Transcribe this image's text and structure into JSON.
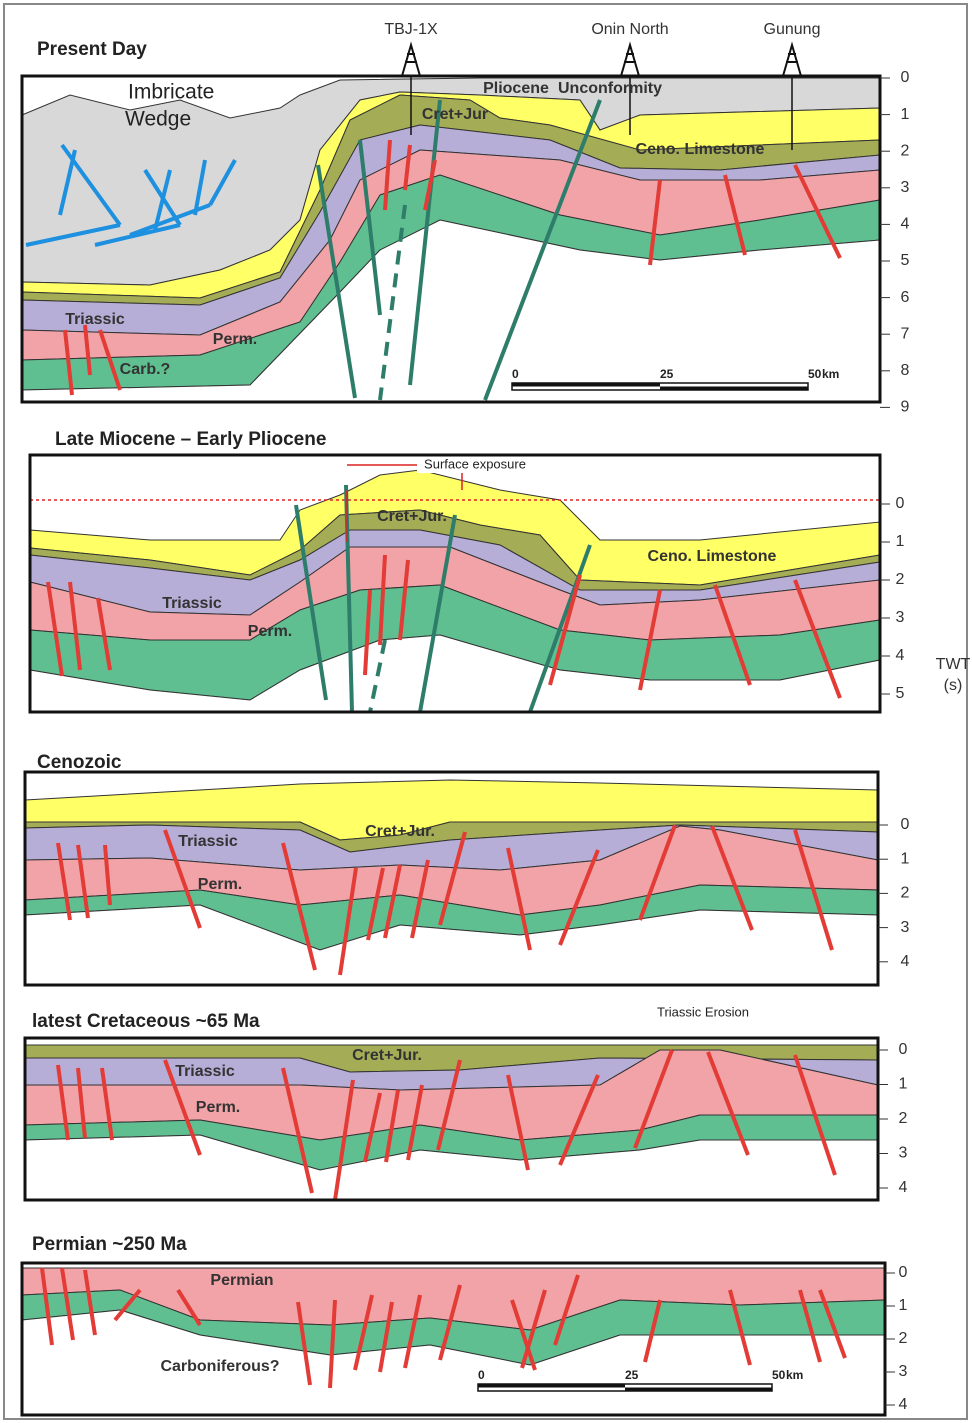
{
  "axis_title": {
    "name": "TWT",
    "unit": "(s)"
  },
  "panels": [
    {
      "title": "Present Day",
      "axis_ticks": [
        0,
        1,
        2,
        3,
        4,
        5,
        6,
        7,
        8,
        9
      ],
      "wells": [
        "TBJ-1X",
        "Onin North",
        "Gunung"
      ],
      "labels": [
        "Imbricate",
        "Wedge",
        "Pliocene",
        "Unconformity",
        "Cret+Jur",
        "Ceno. Limestone",
        "Triassic",
        "Perm.",
        "Carb.?"
      ],
      "scale_bar": [
        0,
        25,
        50
      ],
      "scale_unit": "km"
    },
    {
      "title": "Late Miocene – Early Pliocene",
      "axis_ticks": [
        0,
        1,
        2,
        3,
        4,
        5
      ],
      "labels": [
        "Surface exposure",
        "Cret+Jur.",
        "Ceno. Limestone",
        "Triassic",
        "Perm."
      ]
    },
    {
      "title": "Cenozoic",
      "axis_ticks": [
        0,
        1,
        2,
        3,
        4
      ],
      "labels": [
        "Triassic",
        "Perm.",
        "Cret+Jur."
      ]
    },
    {
      "title": "latest Cretaceous ~65 Ma",
      "axis_ticks": [
        0,
        1,
        2,
        3,
        4
      ],
      "labels": [
        "Triassic Erosion",
        "Cret+Jur.",
        "Triassic",
        "Perm."
      ]
    },
    {
      "title": "Permian ~250 Ma",
      "axis_ticks": [
        0,
        1,
        2,
        3,
        4
      ],
      "labels": [
        "Permian",
        "Carboniferous?"
      ],
      "scale_bar": [
        0,
        25,
        50
      ],
      "scale_unit": "km"
    }
  ]
}
